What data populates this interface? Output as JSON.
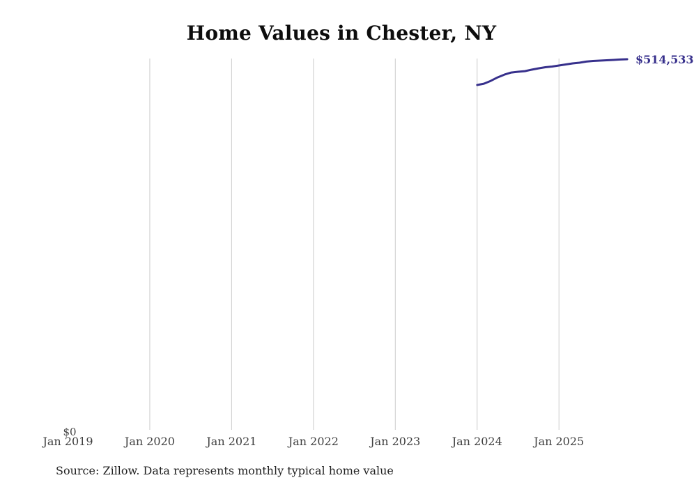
{
  "chart_data": {
    "type": "line",
    "title": "Home Values in Chester, NY",
    "source_note": "Source: Zillow. Data represents monthly typical home value",
    "y_zero_label": "$0",
    "end_value_label": "$514,533",
    "xlabel": "",
    "ylabel": "",
    "ylim": [
      0,
      514533
    ],
    "grid": "vertical-only",
    "legend": "none",
    "line_color": "#37308c",
    "gridline_color": "#cccccc",
    "x_tick_labels": [
      "Jan 2019",
      "Jan 2020",
      "Jan 2021",
      "Jan 2022",
      "Jan 2023",
      "Jan 2024",
      "Jan 2025"
    ],
    "x_tick_month_index": [
      0,
      12,
      24,
      36,
      48,
      60,
      72
    ],
    "gridline_month_index": [
      12,
      24,
      36,
      48,
      60,
      72
    ],
    "series": [
      {
        "name": "Monthly typical home value",
        "start_month_index": 60,
        "x": [
          "Jan 2024",
          "Feb 2024",
          "Mar 2024",
          "Apr 2024",
          "May 2024",
          "Jun 2024",
          "Jul 2024",
          "Aug 2024",
          "Sep 2024",
          "Oct 2024",
          "Nov 2024",
          "Dec 2024",
          "Jan 2025",
          "Feb 2025",
          "Mar 2025",
          "Apr 2025",
          "May 2025",
          "Jun 2025",
          "Jul 2025",
          "Aug 2025",
          "Sep 2025",
          "Oct 2025",
          "Nov 2025"
        ],
        "values": [
          478700,
          480600,
          484500,
          489300,
          493200,
          496100,
          497100,
          498000,
          500000,
          501900,
          503400,
          504400,
          505800,
          507300,
          508700,
          509700,
          511200,
          512100,
          512600,
          513100,
          513600,
          514100,
          514533
        ]
      }
    ]
  }
}
